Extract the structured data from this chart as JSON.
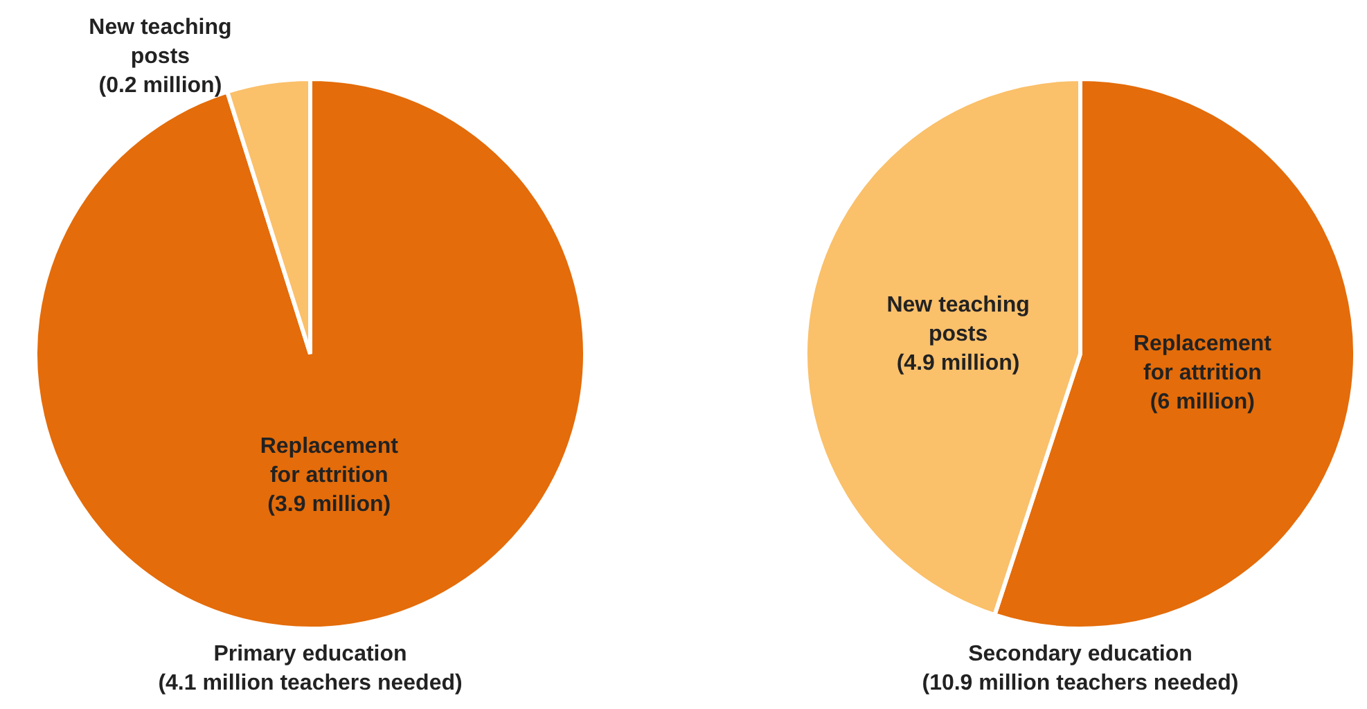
{
  "chart_data": [
    {
      "type": "pie",
      "title": "Primary education",
      "subtitle": "(4.1 million teachers needed)",
      "categories": [
        "Replacement for attrition",
        "New teaching posts"
      ],
      "values": [
        3.9,
        0.2
      ],
      "value_labels": [
        "(3.9 million)",
        "(0.2 million)"
      ],
      "colors": [
        "#e46c0a",
        "#fac06a"
      ],
      "legend": false
    },
    {
      "type": "pie",
      "title": "Secondary education",
      "subtitle": "(10.9 million teachers needed)",
      "categories": [
        "Replacement for attrition",
        "New teaching posts"
      ],
      "values": [
        6,
        4.9
      ],
      "value_labels": [
        "(6 million)",
        "(4.9 million)"
      ],
      "colors": [
        "#e46c0a",
        "#fac06a"
      ],
      "legend": false
    }
  ]
}
